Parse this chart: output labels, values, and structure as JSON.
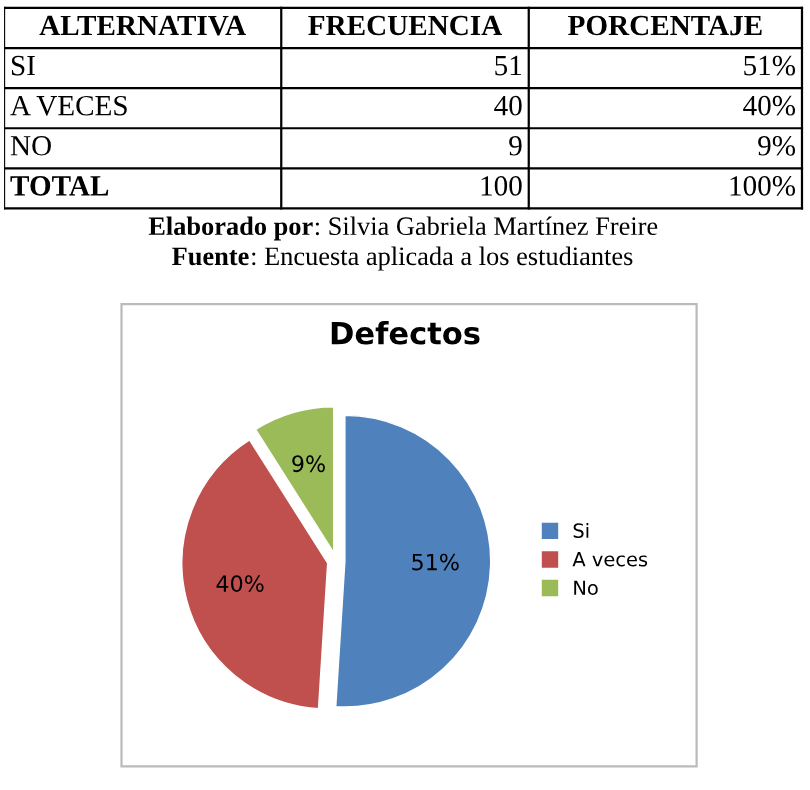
{
  "chart_data": [
    {
      "type": "other",
      "data_labels": true,
      "legend_title": "ALTERNATIVA",
      "categories": [
        "SI",
        "A VECES",
        "NO",
        "TOTAL"
      ],
      "series": [
        {
          "name": "FRECUENCIA",
          "values": [
            51,
            40,
            9,
            100
          ]
        },
        {
          "name": "PORCENTAJE",
          "values": [
            51,
            40,
            9,
            100
          ],
          "value_labels": [
            "51%",
            "40%",
            "9%",
            "100%"
          ]
        }
      ],
      "annotations": [
        "Elaborado por: Silvia Gabriela Martínez Freire",
        "Fuente: Encuesta aplicada a los estudiantes"
      ]
    },
    {
      "type": "pie",
      "title": "Defectos",
      "categories": [
        "Si",
        "A veces",
        "No"
      ],
      "values": [
        51,
        40,
        9
      ],
      "colors": [
        "#4f81bd",
        "#c0504d",
        "#9bbb59"
      ],
      "value_labels": [
        "51%",
        "40%",
        "9%"
      ],
      "legend": "right"
    }
  ]
}
